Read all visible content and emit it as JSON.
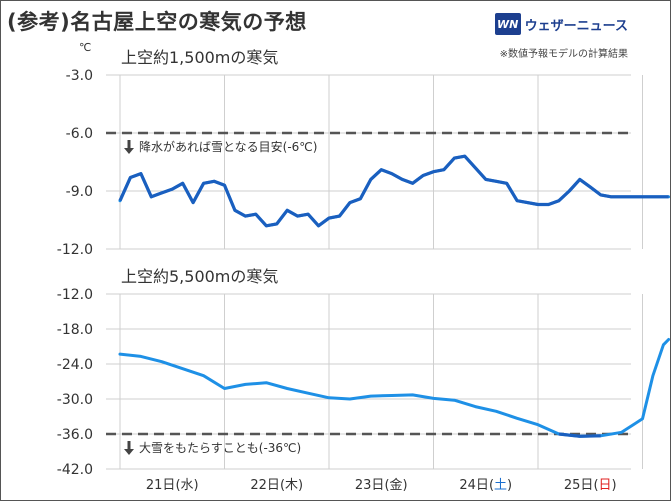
{
  "title": "(参考)名古屋上空の寒気の予想",
  "brand": {
    "logo_mark": "WN",
    "name": "ウェザーニュース"
  },
  "note": "※数値予報モデルの計算結果",
  "unit": "℃",
  "colors": {
    "line": "#1e90e6",
    "line_dark": "#1a5fbf",
    "threshold": "#555555"
  },
  "chart_data": [
    {
      "type": "line",
      "title": "上空約1,500mの寒気",
      "ylim": [
        -12.0,
        -3.0
      ],
      "yticks": [
        "-3.0",
        "-6.0",
        "-9.0",
        "-12.0"
      ],
      "threshold": {
        "value": -6.0,
        "label": "降水があれば雪となる目安(-6℃)"
      },
      "x_days": [
        0,
        1,
        2,
        3,
        4,
        5
      ],
      "series": [
        {
          "x": [
            0.0,
            0.1,
            0.2,
            0.3,
            0.4,
            0.5,
            0.6,
            0.7,
            0.8,
            0.9,
            1.0,
            1.1,
            1.2,
            1.3,
            1.4,
            1.5,
            1.6,
            1.7,
            1.8,
            1.9,
            2.0,
            2.1,
            2.2,
            2.3,
            2.4,
            2.5,
            2.6,
            2.7,
            2.8,
            2.9,
            3.0,
            3.1,
            3.2,
            3.3,
            3.4,
            3.5,
            3.6,
            3.7,
            3.8,
            3.9,
            4.0,
            4.1,
            4.2,
            4.3,
            4.4,
            4.5,
            4.6,
            4.7,
            4.8,
            4.9,
            5.0,
            5.1,
            5.2,
            5.25
          ],
          "values": [
            -9.5,
            -8.3,
            -8.1,
            -9.3,
            -9.1,
            -8.9,
            -8.6,
            -9.6,
            -8.6,
            -8.5,
            -8.7,
            -10.0,
            -10.3,
            -10.2,
            -10.8,
            -10.7,
            -10.0,
            -10.3,
            -10.2,
            -10.8,
            -10.4,
            -10.3,
            -9.6,
            -9.4,
            -8.4,
            -7.9,
            -8.1,
            -8.4,
            -8.6,
            -8.2,
            -8.0,
            -7.9,
            -7.3,
            -7.2,
            -7.8,
            -8.4,
            -8.5,
            -8.6,
            -9.5,
            -9.6,
            -9.7,
            -9.7,
            -9.5,
            -9.0,
            -8.4,
            -8.8,
            -9.2,
            -9.3,
            -9.3,
            -9.3,
            -9.3,
            -9.3,
            -9.3,
            -9.3
          ]
        }
      ]
    },
    {
      "type": "line",
      "title": "上空約5,500mの寒気",
      "ylim": [
        -42.0,
        -12.0
      ],
      "yticks": [
        "-12.0",
        "-18.0",
        "-24.0",
        "-30.0",
        "-36.0",
        "-42.0"
      ],
      "threshold": {
        "value": -36.0,
        "label": "大雪をもたらすことも(-36℃)"
      },
      "series": [
        {
          "x": [
            0.0,
            0.2,
            0.4,
            0.6,
            0.8,
            1.0,
            1.2,
            1.4,
            1.6,
            1.8,
            2.0,
            2.2,
            2.4,
            2.6,
            2.8,
            3.0,
            3.2,
            3.4,
            3.6,
            3.8,
            4.0,
            4.2,
            4.4,
            4.6,
            4.8,
            5.0,
            5.1,
            5.2,
            5.25
          ],
          "values": [
            -22.3,
            -22.7,
            -23.6,
            -24.8,
            -26.0,
            -28.2,
            -27.5,
            -27.2,
            -28.2,
            -29.0,
            -29.8,
            -30.0,
            -29.5,
            -29.4,
            -29.3,
            -29.9,
            -30.2,
            -31.3,
            -32.1,
            -33.3,
            -34.4,
            -36.0,
            -36.4,
            -36.3,
            -35.7,
            -33.4,
            -26.0,
            -20.7,
            -19.8
          ]
        }
      ]
    }
  ],
  "x_labels": [
    {
      "day": "21日",
      "open": "(",
      "weekday": "水",
      "close": ")",
      "type": "weekday"
    },
    {
      "day": "22日",
      "open": "(",
      "weekday": "木",
      "close": ")",
      "type": "weekday"
    },
    {
      "day": "23日",
      "open": "(",
      "weekday": "金",
      "close": ")",
      "type": "weekday"
    },
    {
      "day": "24日",
      "open": "(",
      "weekday": "土",
      "close": ")",
      "type": "sat"
    },
    {
      "day": "25日",
      "open": "(",
      "weekday": "日",
      "close": ")",
      "type": "sun"
    }
  ]
}
